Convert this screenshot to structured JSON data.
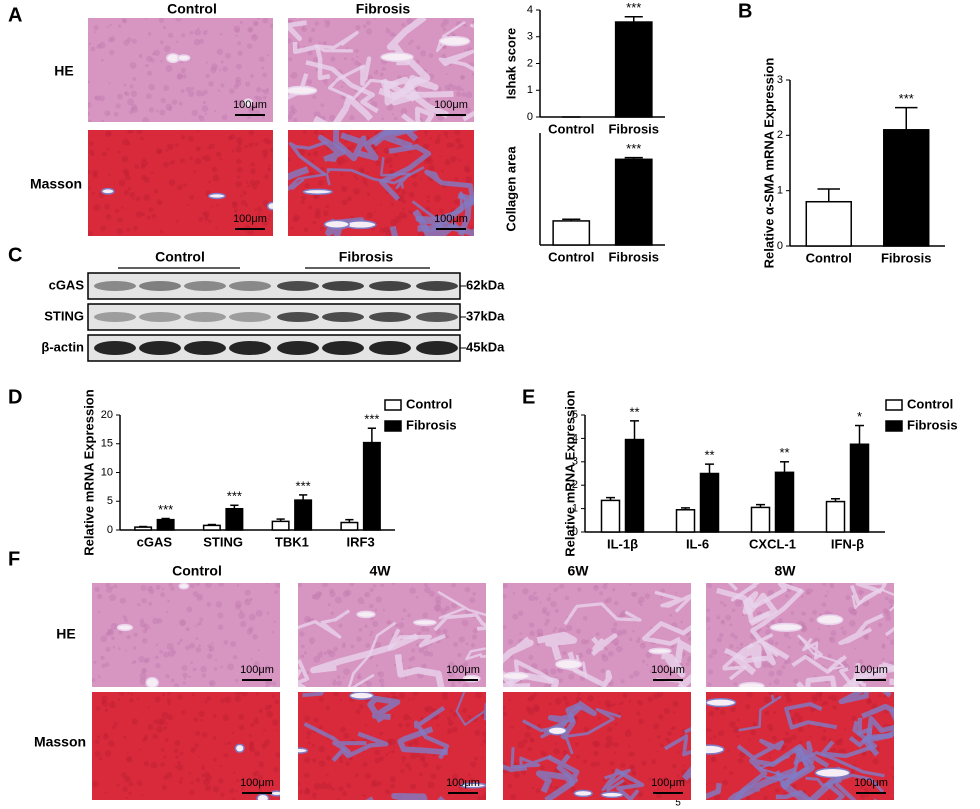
{
  "panel_letters": [
    "A",
    "B",
    "C",
    "D",
    "E",
    "F"
  ],
  "scale_bar": "100μm",
  "page_number": "5",
  "panel_a": {
    "columns": [
      "Control",
      "Fibrosis"
    ],
    "rows": [
      "HE",
      "Masson"
    ]
  },
  "panel_c": {
    "groups": [
      "Control",
      "Fibrosis"
    ],
    "rows": [
      {
        "label": "cGAS",
        "size": "62kDa"
      },
      {
        "label": "STING",
        "size": "37kDa"
      },
      {
        "label": "β-actin",
        "size": "45kDa"
      }
    ]
  },
  "panel_f": {
    "columns": [
      "Control",
      "4W",
      "6W",
      "8W"
    ],
    "rows": [
      "HE",
      "Masson"
    ]
  },
  "chart_data": [
    {
      "type": "bar",
      "y_label": "Ishak score",
      "categories": [
        "Control",
        "Fibrosis"
      ],
      "values": [
        0,
        3.55
      ],
      "errors": [
        0,
        0.2
      ],
      "colors": [
        "#ffffff",
        "#000000"
      ],
      "annotations": [
        null,
        "***"
      ],
      "ylim": [
        0,
        4
      ],
      "yticks": [
        0,
        1,
        2,
        3,
        4
      ]
    },
    {
      "type": "bar",
      "y_label": "Collagen area",
      "categories": [
        "Control",
        "Fibrosis"
      ],
      "values": [
        4.3,
        15.3
      ],
      "errors": [
        0.3,
        0.3
      ],
      "colors": [
        "#ffffff",
        "#000000"
      ],
      "annotations": [
        null,
        "***"
      ],
      "ylim": [
        0,
        20
      ]
    },
    {
      "type": "bar",
      "y_label": "Relative  α-SMA  mRNA Expression",
      "categories": [
        "Control",
        "Fibrosis"
      ],
      "values": [
        0.8,
        2.1
      ],
      "errors": [
        0.23,
        0.4
      ],
      "colors": [
        "#ffffff",
        "#000000"
      ],
      "annotations": [
        null,
        "***"
      ],
      "ylim": [
        0,
        3
      ],
      "yticks": [
        0,
        1,
        2,
        3
      ]
    },
    {
      "type": "bar",
      "y_label": "Relative  mRNA Expression",
      "categories": [
        "cGAS",
        "STING",
        "TBK1",
        "IRF3"
      ],
      "series": [
        {
          "name": "Control",
          "color": "#ffffff",
          "values": [
            0.5,
            0.8,
            1.5,
            1.3
          ],
          "errors": [
            0.1,
            0.15,
            0.4,
            0.5
          ]
        },
        {
          "name": "Fibrosis",
          "color": "#000000",
          "values": [
            1.8,
            3.7,
            5.2,
            15.2
          ],
          "errors": [
            0.2,
            0.6,
            0.9,
            2.5
          ],
          "annotations": [
            "***",
            "***",
            "***",
            "***"
          ]
        }
      ],
      "ylim": [
        0,
        20
      ],
      "yticks": [
        0,
        5,
        10,
        15,
        20
      ],
      "legend": "top-right"
    },
    {
      "type": "bar",
      "y_label": "Relative  mRNA Expression",
      "categories": [
        "IL-1β",
        "IL-6",
        "CXCL-1",
        "IFN-β"
      ],
      "series": [
        {
          "name": "Control",
          "color": "#ffffff",
          "values": [
            1.35,
            0.95,
            1.05,
            1.3
          ],
          "errors": [
            0.12,
            0.08,
            0.12,
            0.12
          ]
        },
        {
          "name": "Fibrosis",
          "color": "#000000",
          "values": [
            3.95,
            2.5,
            2.55,
            3.75
          ],
          "errors": [
            0.8,
            0.4,
            0.45,
            0.8
          ],
          "annotations": [
            "**",
            "**",
            "**",
            "*"
          ]
        }
      ],
      "ylim": [
        0,
        5
      ],
      "yticks": [
        0,
        1,
        2,
        3,
        4,
        5
      ],
      "legend": "top-right"
    }
  ]
}
